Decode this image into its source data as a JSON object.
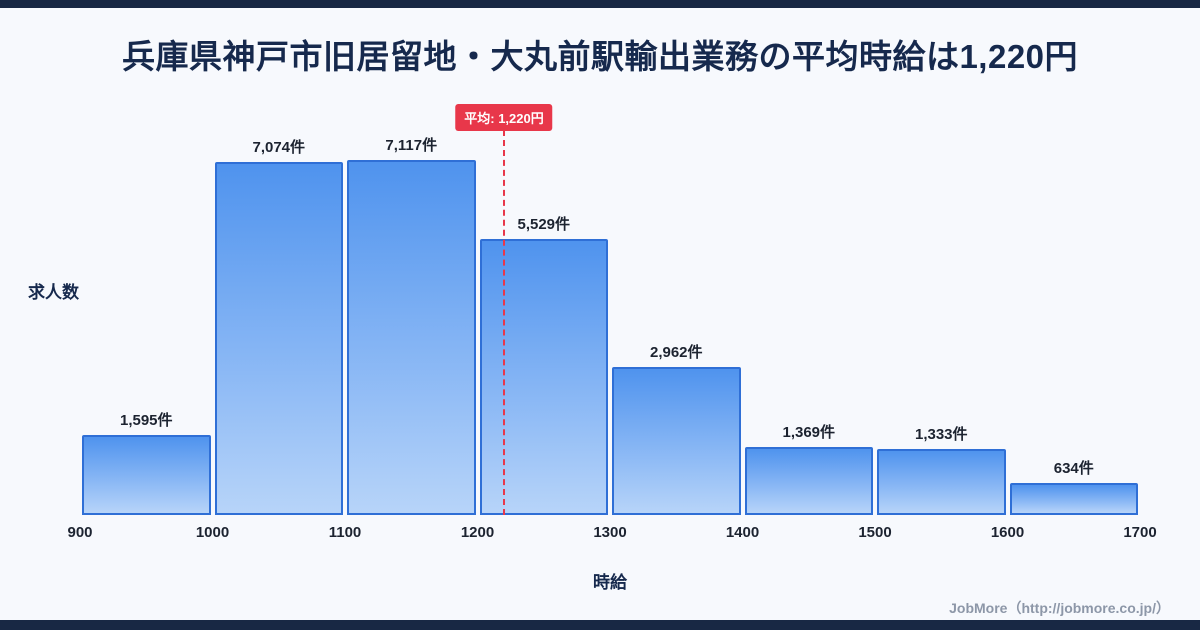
{
  "page": {
    "footer": "JobMore（http://jobmore.co.jp/）"
  },
  "chart_data": {
    "type": "bar",
    "title": "兵庫県神戸市旧居留地・大丸前駅輸出業務の平均時給は1,220円",
    "xlabel": "時給",
    "ylabel": "求人数",
    "x_ticks": [
      "900",
      "1000",
      "1100",
      "1200",
      "1300",
      "1400",
      "1500",
      "1600",
      "1700"
    ],
    "bin_start": 900,
    "bin_width": 100,
    "categories": [
      "900-1000",
      "1000-1100",
      "1100-1200",
      "1200-1300",
      "1300-1400",
      "1400-1500",
      "1500-1600",
      "1600-1700"
    ],
    "values": [
      1595,
      7074,
      7117,
      5529,
      2962,
      1369,
      1333,
      634
    ],
    "labels": [
      "1,595件",
      "7,074件",
      "7,117件",
      "5,529件",
      "2,962件",
      "1,369件",
      "1,333件",
      "634件"
    ],
    "average": {
      "value": 1220,
      "label": "平均: 1,220円"
    },
    "ylim": [
      0,
      7500
    ],
    "legend": "none",
    "grid": "off",
    "colors": {
      "bar_top": "#4f93ee",
      "bar_bottom": "#b7d4f9",
      "bar_border": "#2f6fd6",
      "average_line": "#e8374a",
      "title_text": "#16294d",
      "background": "#f7f9fd",
      "edge_strip": "#182844"
    }
  }
}
